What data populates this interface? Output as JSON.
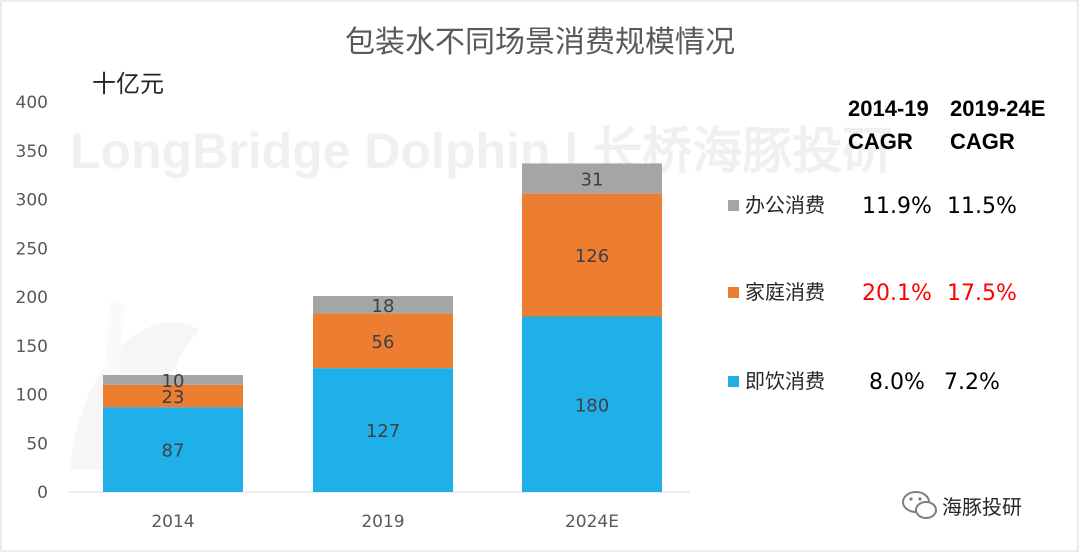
{
  "chart_data": {
    "type": "bar",
    "stacked": true,
    "title": "包装水不同场景消费规模情况",
    "unit_label": "十亿元",
    "categories": [
      "2014",
      "2019",
      "2024E"
    ],
    "ylim": [
      0,
      400
    ],
    "yticks": [
      0,
      50,
      100,
      150,
      200,
      250,
      300,
      350,
      400
    ],
    "grid": false,
    "series": [
      {
        "name": "即饮消费",
        "color": "#1fb0ea",
        "values": [
          87,
          127,
          180
        ]
      },
      {
        "name": "家庭消费",
        "color": "#ed7d31",
        "values": [
          23,
          56,
          126
        ]
      },
      {
        "name": "办公消费",
        "color": "#a5a5a5",
        "values": [
          10,
          18,
          31
        ]
      }
    ],
    "cagr_headers": [
      "2014-19 CAGR",
      "2019-24E CAGR"
    ],
    "cagr_header_lines": [
      [
        "2014-19",
        "CAGR"
      ],
      [
        "2019-24E",
        "CAGR"
      ]
    ],
    "cagr_rows": [
      {
        "series": "办公消费",
        "color": "#a5a5a5",
        "values": [
          "11.9%",
          "11.5%"
        ],
        "text_color": "#000000"
      },
      {
        "series": "家庭消费",
        "color": "#ed7d31",
        "values": [
          "20.1%",
          "17.5%"
        ],
        "text_color": "#ff0000"
      },
      {
        "series": "即饮消费",
        "color": "#1fb0ea",
        "values": [
          "8.0%",
          "7.2%"
        ],
        "text_color": "#000000"
      }
    ],
    "legend_position": "right"
  },
  "watermark_text": "LongBridge Dolphin | 长桥海豚投研",
  "brand_label": "海豚投研"
}
